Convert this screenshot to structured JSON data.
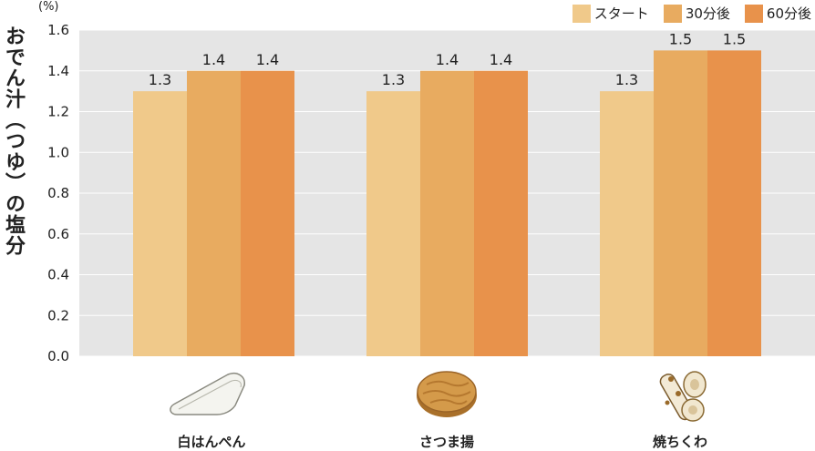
{
  "chart_data": {
    "type": "bar",
    "ylabel": "おでん汁（つゆ）の塩分",
    "unit": "(%)",
    "ylim": [
      0,
      1.6
    ],
    "yticks": [
      "0.0",
      "0.2",
      "0.4",
      "0.6",
      "0.8",
      "1.0",
      "1.2",
      "1.4",
      "1.6"
    ],
    "grid": true,
    "legend_position": "top-right",
    "categories": [
      "白はんぺん",
      "さつま揚",
      "焼ちくわ"
    ],
    "series": [
      {
        "name": "スタート",
        "values": [
          1.3,
          1.3,
          1.3
        ],
        "labels": [
          "1.3",
          "1.3",
          "1.3"
        ],
        "color": "#f0c98a"
      },
      {
        "name": "30分後",
        "values": [
          1.4,
          1.4,
          1.5
        ],
        "labels": [
          "1.4",
          "1.4",
          "1.5"
        ],
        "color": "#e8ab60"
      },
      {
        "name": "60分後",
        "values": [
          1.4,
          1.4,
          1.5
        ],
        "labels": [
          "1.4",
          "1.4",
          "1.5"
        ],
        "color": "#e8924b"
      }
    ],
    "colors": {
      "plot_bg": "#e5e5e5",
      "gridline": "#ffffff"
    }
  },
  "icons": [
    "hanpen-icon",
    "satsumaage-icon",
    "chikuwa-icon"
  ]
}
